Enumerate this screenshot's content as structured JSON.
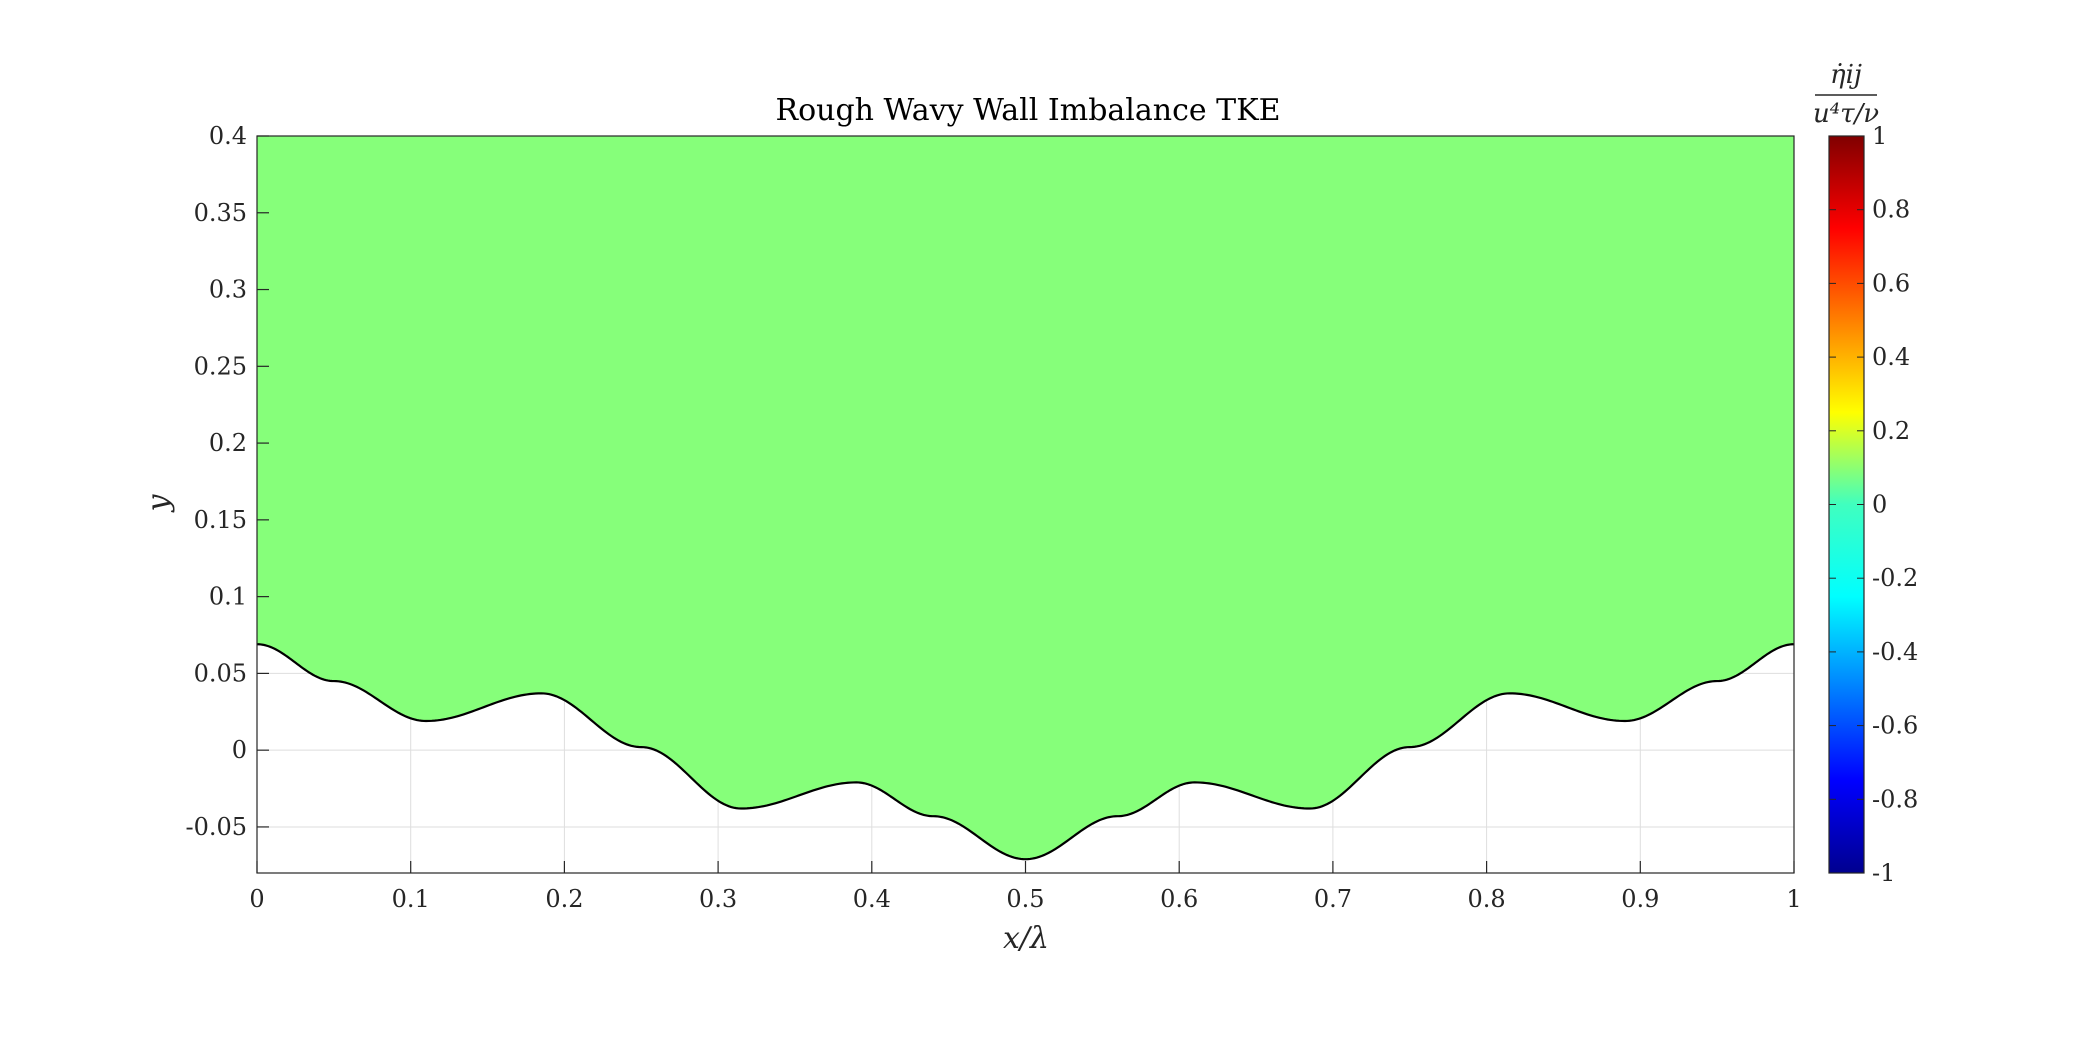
{
  "chart_data": {
    "type": "contour",
    "title": "Rough Wavy Wall Imbalance TKE",
    "xlabel": "x/λ",
    "ylabel": "y",
    "xlim": [
      0,
      1
    ],
    "ylim": [
      -0.08,
      0.4
    ],
    "xticks": [
      "0",
      "0.1",
      "0.2",
      "0.3",
      "0.4",
      "0.5",
      "0.6",
      "0.7",
      "0.8",
      "0.9",
      "1"
    ],
    "yticks": [
      "-0.05",
      "0",
      "0.05",
      "0.1",
      "0.15",
      "0.2",
      "0.25",
      "0.3",
      "0.35",
      "0.4"
    ],
    "grid": true,
    "field_fill_color": "#86ff7a",
    "field_value": 0.05,
    "wall_profile": {
      "x": [
        0,
        0.05,
        0.11,
        0.185,
        0.25,
        0.315,
        0.39,
        0.44,
        0.5,
        0.56,
        0.61,
        0.685,
        0.75,
        0.815,
        0.89,
        0.95,
        1
      ],
      "y": [
        0.069,
        0.045,
        0.019,
        0.037,
        0.002,
        -0.038,
        -0.021,
        -0.043,
        -0.071,
        -0.043,
        -0.021,
        -0.038,
        0.002,
        0.037,
        0.019,
        0.045,
        0.069
      ]
    },
    "colorbar": {
      "label_numerator": "η̇ij",
      "label_denominator": "u⁴τ/ν",
      "colormap": "jet",
      "range": [
        -1,
        1
      ],
      "ticks": [
        "1",
        "0.8",
        "0.6",
        "0.4",
        "0.2",
        "0",
        "-0.2",
        "-0.4",
        "-0.6",
        "-0.8",
        "-1"
      ]
    }
  }
}
